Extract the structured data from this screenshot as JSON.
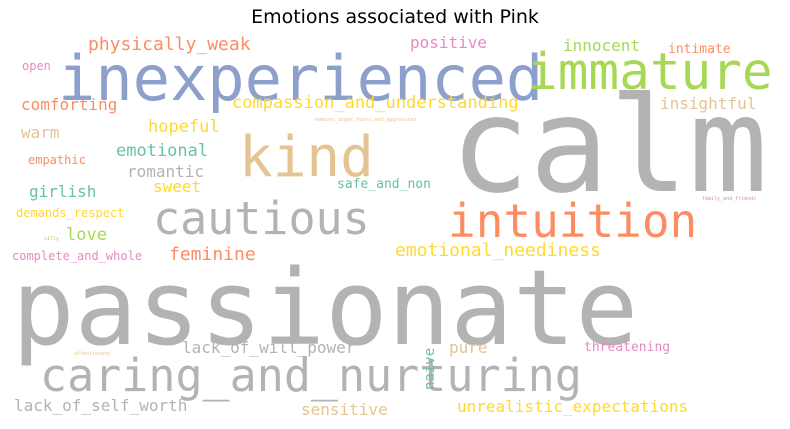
{
  "title": "Emotions associated with Pink",
  "colors": {
    "gray": "#b3b3b3",
    "blue": "#8da0cb",
    "green": "#a6d854",
    "orange": "#fc8d62",
    "tan": "#e5c494",
    "teal": "#66c2a5",
    "yellow": "#ffd92f",
    "pink": "#e78ac3"
  },
  "words": [
    {
      "text": "passionate",
      "color": "gray"
    },
    {
      "text": "calm",
      "color": "gray"
    },
    {
      "text": "inexperienced",
      "color": "blue"
    },
    {
      "text": "caring_and_nurturing",
      "color": "gray"
    },
    {
      "text": "immature",
      "color": "green"
    },
    {
      "text": "intuition",
      "color": "orange"
    },
    {
      "text": "kind",
      "color": "tan"
    },
    {
      "text": "cautious",
      "color": "gray"
    },
    {
      "text": "compassion_and_understanding",
      "color": "yellow"
    },
    {
      "text": "emotional_neediness",
      "color": "yellow"
    },
    {
      "text": "physically_weak",
      "color": "orange"
    },
    {
      "text": "positive",
      "color": "pink"
    },
    {
      "text": "innocent",
      "color": "green"
    },
    {
      "text": "intimate",
      "color": "orange"
    },
    {
      "text": "open",
      "color": "pink"
    },
    {
      "text": "comforting",
      "color": "orange"
    },
    {
      "text": "insightful",
      "color": "tan"
    },
    {
      "text": "warm",
      "color": "tan"
    },
    {
      "text": "hopeful",
      "color": "yellow"
    },
    {
      "text": "emotional",
      "color": "teal"
    },
    {
      "text": "empathic",
      "color": "orange"
    },
    {
      "text": "romantic",
      "color": "gray"
    },
    {
      "text": "girlish",
      "color": "teal"
    },
    {
      "text": "sweet",
      "color": "yellow"
    },
    {
      "text": "safe_and_non",
      "color": "teal"
    },
    {
      "text": "demands_respect",
      "color": "yellow"
    },
    {
      "text": "love",
      "color": "green"
    },
    {
      "text": "feminine",
      "color": "orange"
    },
    {
      "text": "complete_and_whole",
      "color": "pink"
    },
    {
      "text": "silly",
      "color": "green"
    },
    {
      "text": "lack_of_will_power",
      "color": "gray"
    },
    {
      "text": "pure",
      "color": "tan"
    },
    {
      "text": "naive",
      "color": "teal"
    },
    {
      "text": "threatening",
      "color": "pink"
    },
    {
      "text": "lack_of_self_worth",
      "color": "gray"
    },
    {
      "text": "sensitive",
      "color": "tan"
    },
    {
      "text": "unrealistic_expectations",
      "color": "yellow"
    },
    {
      "text": "family_and_friends",
      "color": "pink"
    },
    {
      "text": "removes_anger,fears,and_aggression",
      "color": "tan"
    },
    {
      "text": "affectionate",
      "color": "tan"
    }
  ]
}
